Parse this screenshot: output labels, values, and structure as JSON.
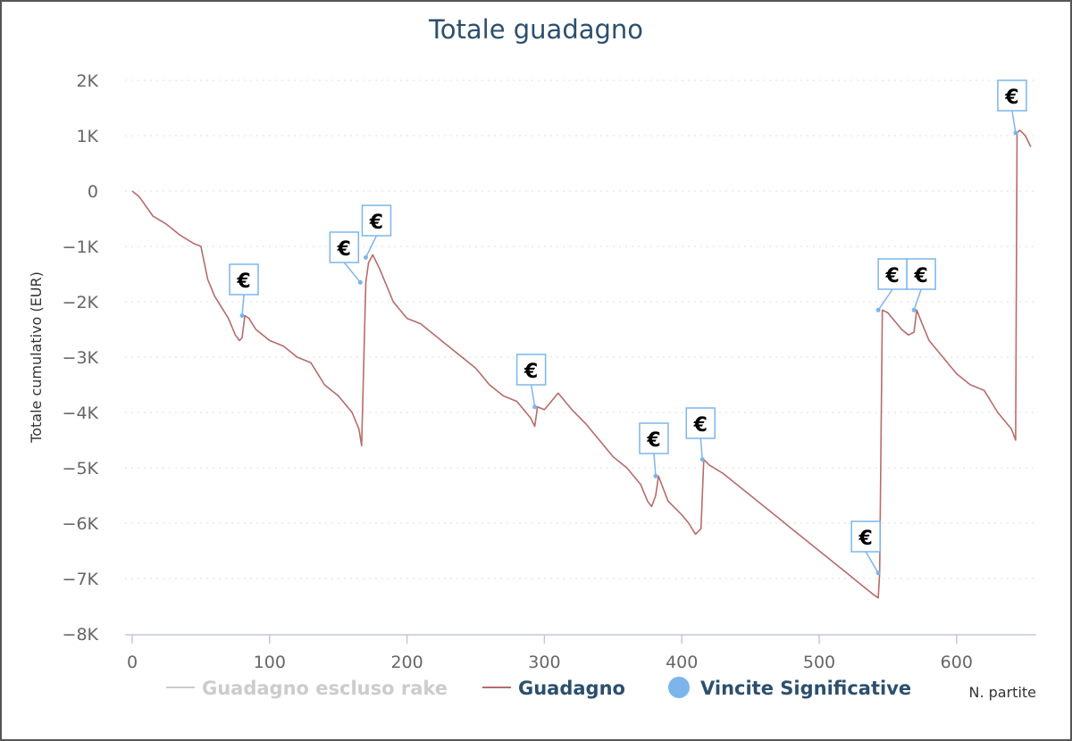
{
  "chart_data": {
    "type": "line",
    "title": "Totale guadagno",
    "ylabel": "Totale cumulativo (EUR)",
    "xlabel": "N. partite",
    "xlim": [
      0,
      655
    ],
    "ylim": [
      -8000,
      2000
    ],
    "x_ticks": [
      0,
      100,
      200,
      300,
      400,
      500,
      600
    ],
    "x_tick_labels": [
      "0",
      "100",
      "200",
      "300",
      "400",
      "500",
      "600"
    ],
    "y_ticks": [
      -8000,
      -7000,
      -6000,
      -5000,
      -4000,
      -3000,
      -2000,
      -1000,
      0,
      1000,
      2000
    ],
    "y_tick_labels": [
      "−8K",
      "−7K",
      "−6K",
      "−5K",
      "−4K",
      "−3K",
      "−2K",
      "−1K",
      "0",
      "1K",
      "2K"
    ],
    "grid": true,
    "legend_position": "bottom",
    "series": [
      {
        "name": "Guadagno escluso rake",
        "color": "#cccccc",
        "hidden": true,
        "x": [],
        "y": []
      },
      {
        "name": "Guadagno",
        "color": "#b86b6b",
        "x": [
          0,
          5,
          15,
          25,
          35,
          45,
          50,
          55,
          60,
          65,
          70,
          75,
          78,
          80,
          82,
          85,
          90,
          100,
          110,
          120,
          130,
          140,
          150,
          160,
          165,
          167,
          170,
          172,
          175,
          180,
          190,
          200,
          210,
          220,
          230,
          240,
          250,
          260,
          270,
          280,
          290,
          293,
          295,
          300,
          305,
          310,
          320,
          330,
          340,
          350,
          360,
          370,
          375,
          378,
          381,
          383,
          390,
          400,
          405,
          410,
          414,
          416,
          418,
          420,
          430,
          440,
          450,
          460,
          470,
          480,
          490,
          500,
          510,
          520,
          530,
          540,
          543,
          544,
          546,
          550,
          560,
          565,
          569,
          571,
          575,
          580,
          590,
          600,
          610,
          620,
          630,
          640,
          643,
          644,
          646,
          650,
          654
        ],
        "y": [
          0,
          -100,
          -450,
          -600,
          -800,
          -950,
          -1000,
          -1600,
          -1900,
          -2100,
          -2300,
          -2600,
          -2700,
          -2650,
          -2250,
          -2300,
          -2500,
          -2700,
          -2800,
          -3000,
          -3100,
          -3500,
          -3700,
          -4000,
          -4300,
          -4600,
          -1650,
          -1300,
          -1150,
          -1400,
          -2000,
          -2300,
          -2400,
          -2600,
          -2800,
          -3000,
          -3200,
          -3500,
          -3700,
          -3800,
          -4100,
          -4250,
          -3900,
          -3950,
          -3800,
          -3650,
          -3950,
          -4200,
          -4500,
          -4800,
          -5000,
          -5300,
          -5600,
          -5700,
          -5500,
          -5150,
          -5600,
          -5850,
          -6000,
          -6200,
          -6100,
          -4850,
          -4900,
          -4950,
          -5100,
          -5300,
          -5500,
          -5700,
          -5900,
          -6100,
          -6300,
          -6500,
          -6700,
          -6900,
          -7100,
          -7300,
          -7350,
          -6900,
          -2150,
          -2200,
          -2500,
          -2600,
          -2550,
          -2150,
          -2400,
          -2700,
          -3000,
          -3300,
          -3500,
          -3600,
          -4000,
          -4300,
          -4500,
          1050,
          1100,
          1000,
          800
        ]
      }
    ],
    "markers": {
      "name": "Vincite Significative",
      "color": "#7cb5ec",
      "symbol": "€",
      "points": [
        {
          "x": 80,
          "y": -2250
        },
        {
          "x": 166,
          "y": -1650
        },
        {
          "x": 170,
          "y": -1200
        },
        {
          "x": 293,
          "y": -3900
        },
        {
          "x": 381,
          "y": -5150
        },
        {
          "x": 415,
          "y": -4850
        },
        {
          "x": 543,
          "y": -6900
        },
        {
          "x": 543,
          "y": -2150
        },
        {
          "x": 569,
          "y": -2150
        },
        {
          "x": 643,
          "y": 1050
        }
      ]
    },
    "legend": [
      {
        "label": "Guadagno escluso rake",
        "color": "#cccccc",
        "kind": "line"
      },
      {
        "label": "Guadagno",
        "color": "#2c4f6e",
        "kind": "line",
        "swatch": "#b86b6b"
      },
      {
        "label": "Vincite Significative",
        "color": "#2c4f6e",
        "kind": "dot",
        "swatch": "#7cb5ec"
      }
    ]
  }
}
